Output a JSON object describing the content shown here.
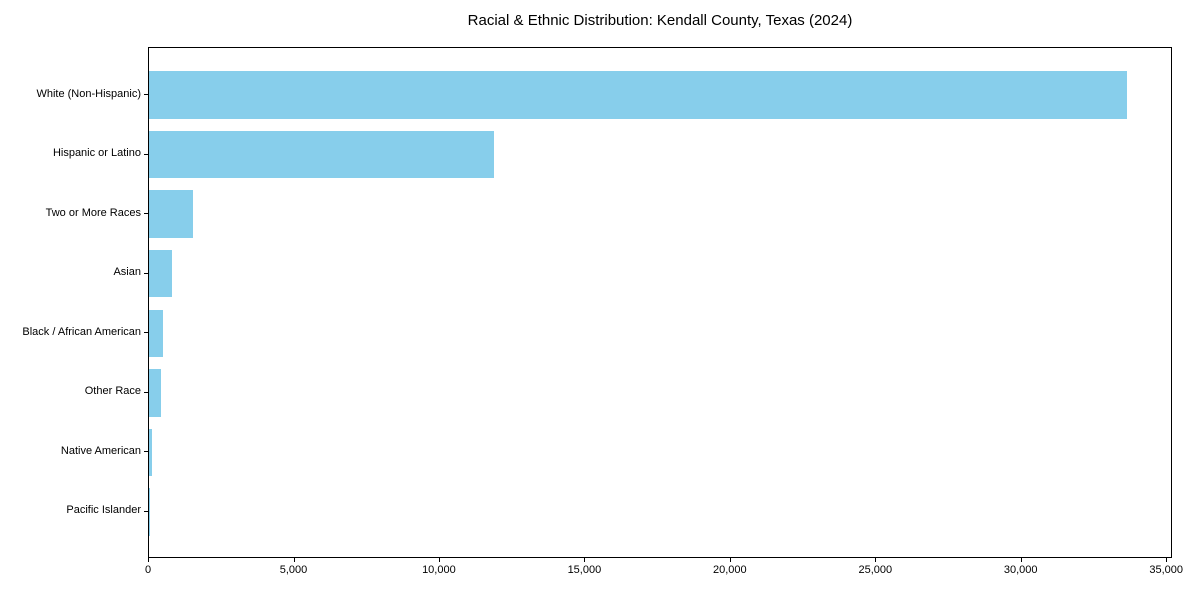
{
  "chart_data": {
    "type": "bar",
    "orientation": "horizontal",
    "title": "Racial & Ethnic Distribution: Kendall County, Texas (2024)",
    "xlabel": "",
    "ylabel": "",
    "categories": [
      "White (Non-Hispanic)",
      "Hispanic or Latino",
      "Two or More Races",
      "Asian",
      "Black / African American",
      "Other Race",
      "Native American",
      "Pacific Islander"
    ],
    "values": [
      33600,
      11850,
      1500,
      800,
      470,
      400,
      100,
      25
    ],
    "xlim": [
      0,
      35200
    ],
    "x_ticks": [
      0,
      5000,
      10000,
      15000,
      20000,
      25000,
      30000,
      35000
    ],
    "x_tick_labels": [
      "0",
      "5,000",
      "10,000",
      "15,000",
      "20,000",
      "25,000",
      "30,000",
      "35,000"
    ],
    "bar_color": "#87CEEB",
    "spine_color": "#000000",
    "text_color": "#000000",
    "grid": false,
    "legend": "none"
  }
}
